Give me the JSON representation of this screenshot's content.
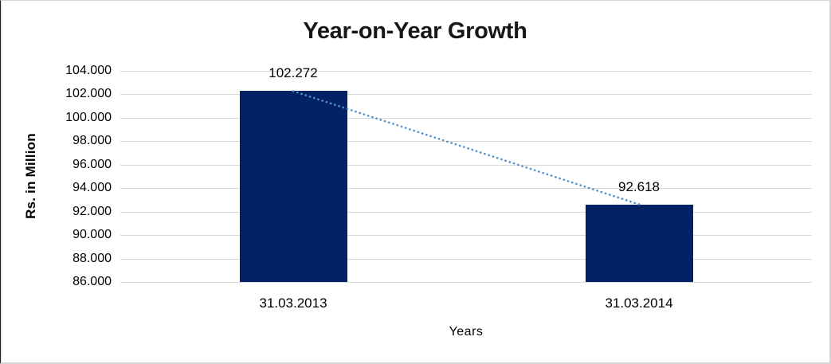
{
  "chart_data": {
    "type": "bar",
    "title": "Year-on-Year Growth",
    "xlabel": "Years",
    "ylabel": "Rs. in Million",
    "categories": [
      "31.03.2013",
      "31.03.2014"
    ],
    "values": [
      102.272,
      92.618
    ],
    "data_labels": [
      "102.272",
      "92.618"
    ],
    "y_ticks": [
      "104.000",
      "102.000",
      "100.000",
      "98.000",
      "96.000",
      "94.000",
      "92.000",
      "90.000",
      "88.000",
      "86.000"
    ],
    "ylim": [
      86,
      104
    ],
    "y_step": 2,
    "grid": true,
    "legend": "none",
    "trendline": {
      "style": "dotted",
      "from_point": "31.03.2013",
      "to_point": "31.03.2014"
    },
    "colors": {
      "bar": "#032266",
      "trendline": "#4f8fce",
      "gridline": "#d9d9d9",
      "title_text": "#171717",
      "axis_text": "#000000"
    }
  }
}
